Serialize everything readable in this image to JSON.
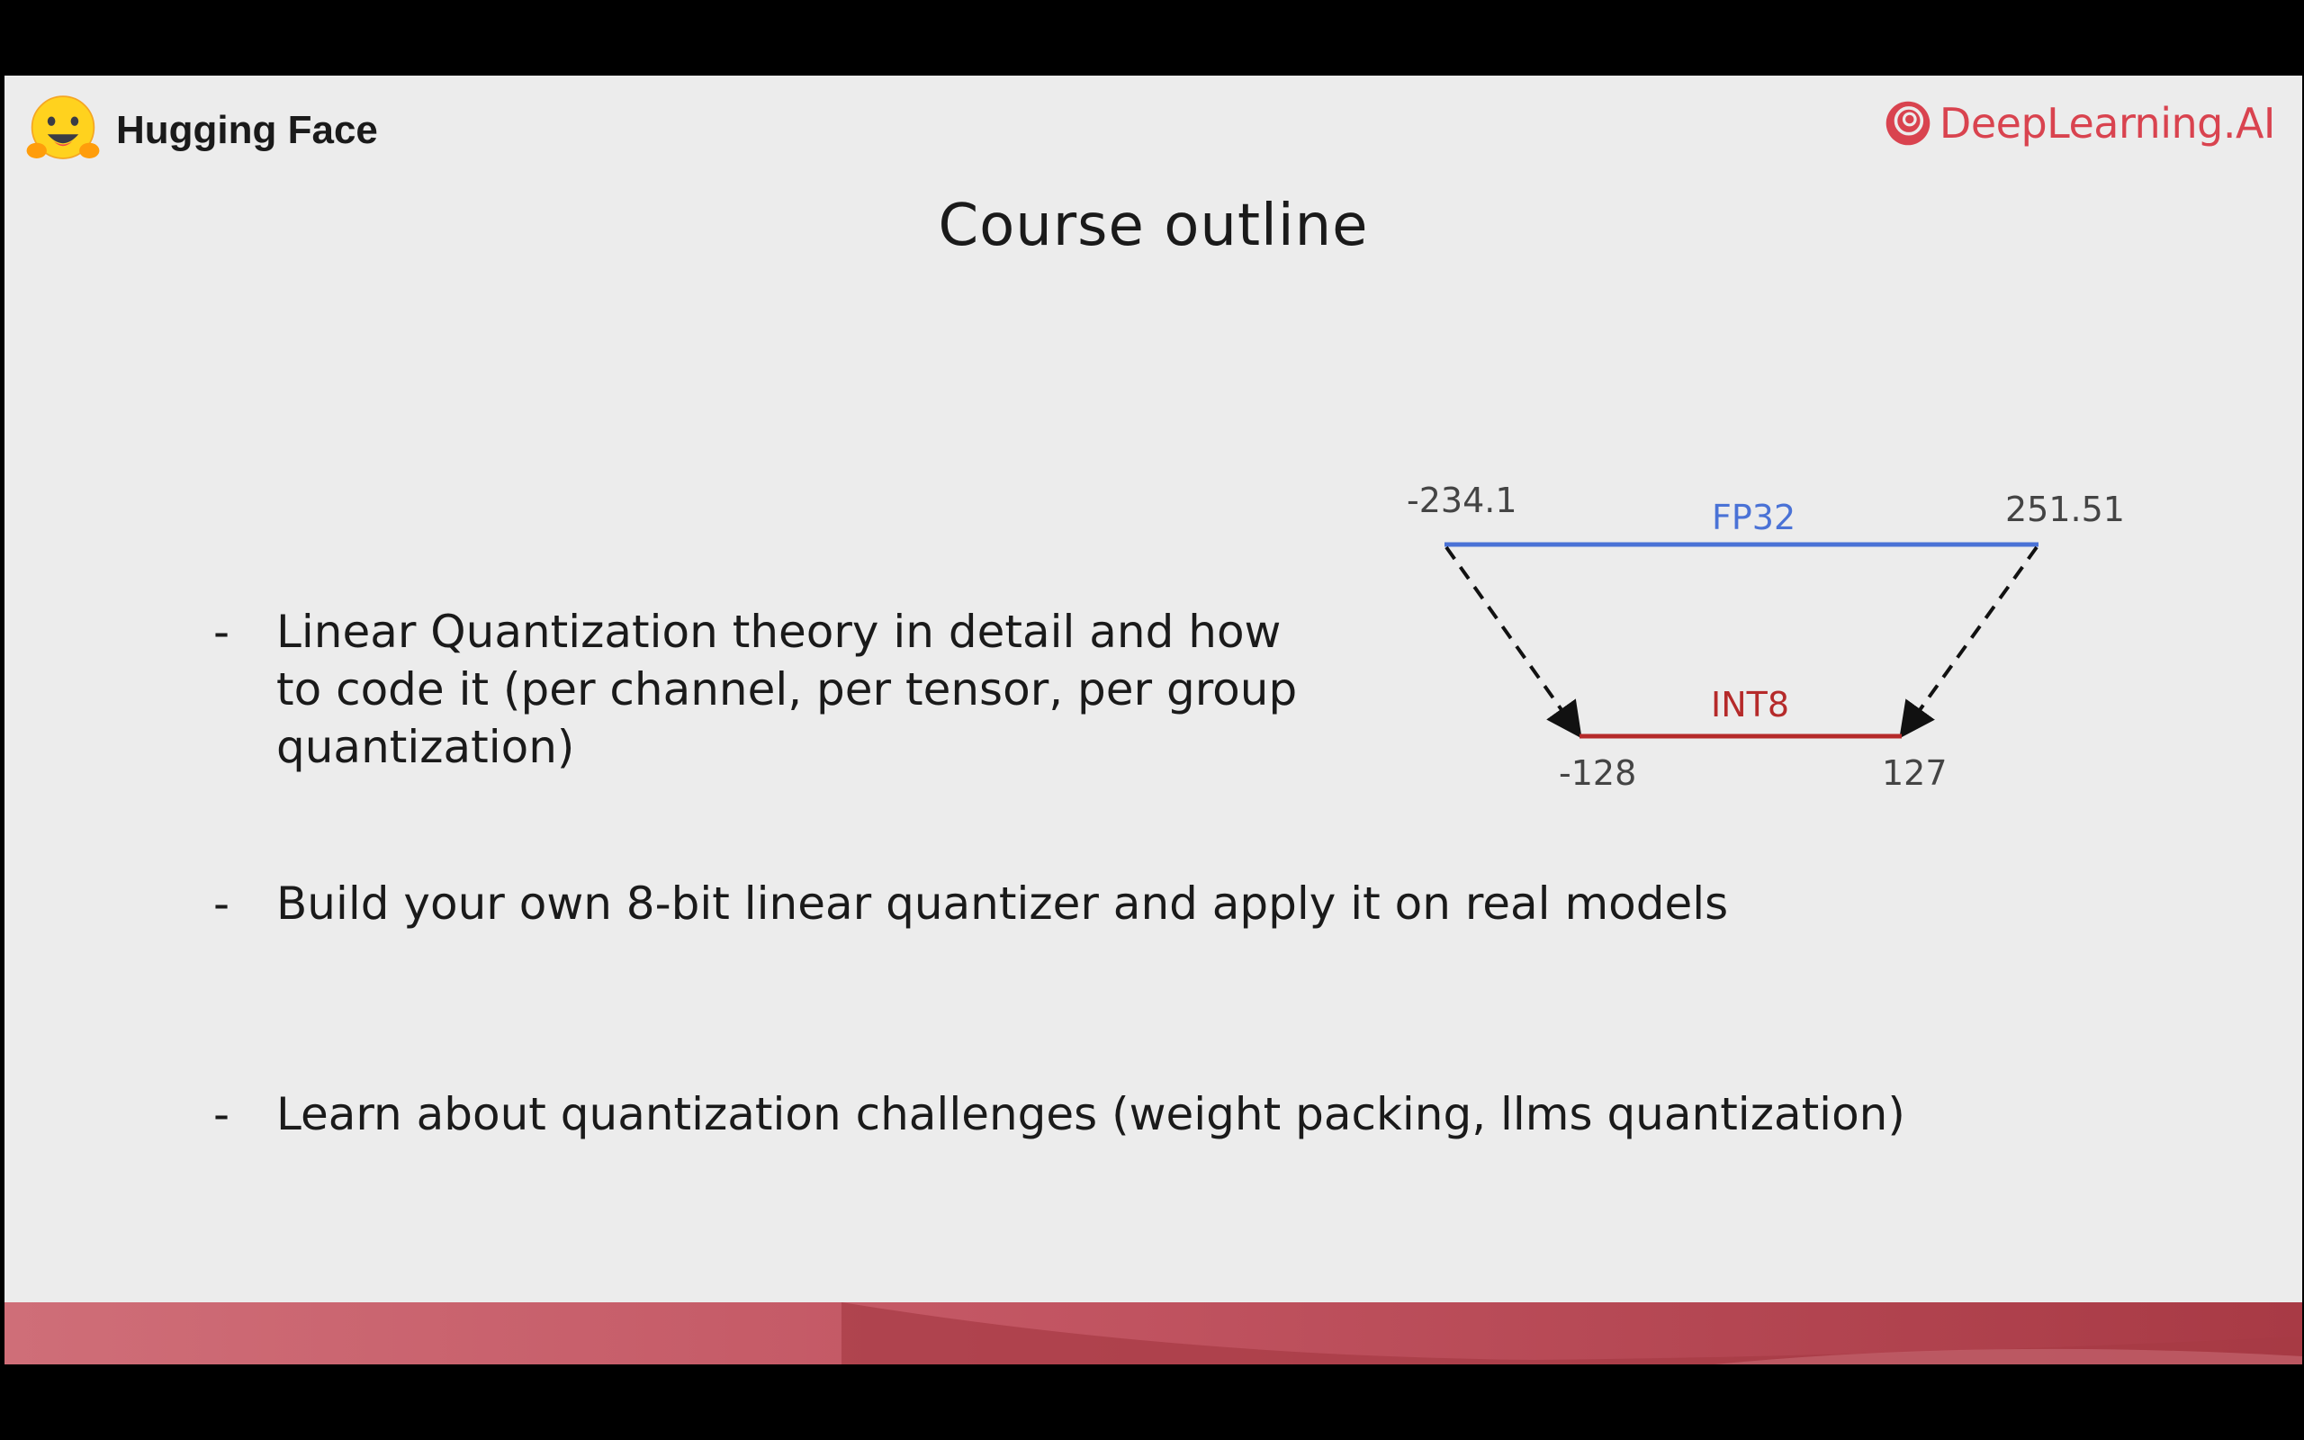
{
  "header": {
    "left_logo_text": "Hugging Face",
    "right_logo_text": "DeepLearning.AI"
  },
  "slide": {
    "title": "Course outline",
    "bullets": [
      {
        "marker": "-",
        "text": "Linear Quantization theory in detail and how\nto code it (per channel, per tensor, per group\nquantization)"
      },
      {
        "marker": "-",
        "text": "Build your own 8-bit linear quantizer and apply it on real models"
      },
      {
        "marker": "-",
        "text": "Learn about quantization challenges (weight packing, llms quantization)"
      }
    ]
  },
  "diagram": {
    "fp32_label": "FP32",
    "fp32_min": "-234.1",
    "fp32_max": "251.51",
    "int8_label": "INT8",
    "int8_min": "-128",
    "int8_max": "127",
    "fp32_color": "#4a72d6",
    "int8_color": "#b52a2a"
  },
  "colors": {
    "background": "#ececec",
    "brand_red": "#d9434f",
    "footer_red": "#c25562"
  },
  "icons": {
    "left_logo": "hugging-face-emoji-icon",
    "right_logo": "deeplearning-ai-logo-icon"
  }
}
